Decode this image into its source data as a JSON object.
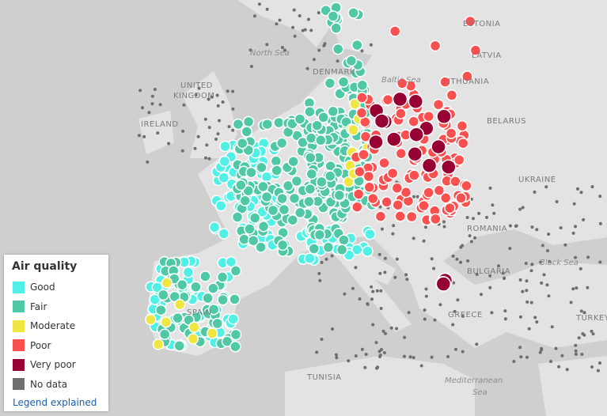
{
  "map": {
    "labels": [
      "North Sea",
      "ESTONIA",
      "LATVIA",
      "DENMARK",
      "Baltic Sea",
      "LITHUANIA",
      "UNITED",
      "KINGDOM",
      "IRELAND",
      "BELARUS",
      "UKRAINE",
      "ROMANIA",
      "Black Sea",
      "BULGARIA",
      "GREECE",
      "TURKEY",
      "SPAIN",
      "TUNISIA",
      "Mediterranean",
      "Sea"
    ],
    "legend": {
      "title": "Air quality",
      "items": [
        {
          "name": "Good",
          "color": "#50f0e6"
        },
        {
          "name": "Fair",
          "color": "#50c8a6"
        },
        {
          "name": "Moderate",
          "color": "#f0e641"
        },
        {
          "name": "Poor",
          "color": "#fa5050"
        },
        {
          "name": "Very poor",
          "color": "#960032"
        },
        {
          "name": "No data",
          "color": "#6e6e6e"
        }
      ],
      "link": "Legend explained"
    }
  }
}
